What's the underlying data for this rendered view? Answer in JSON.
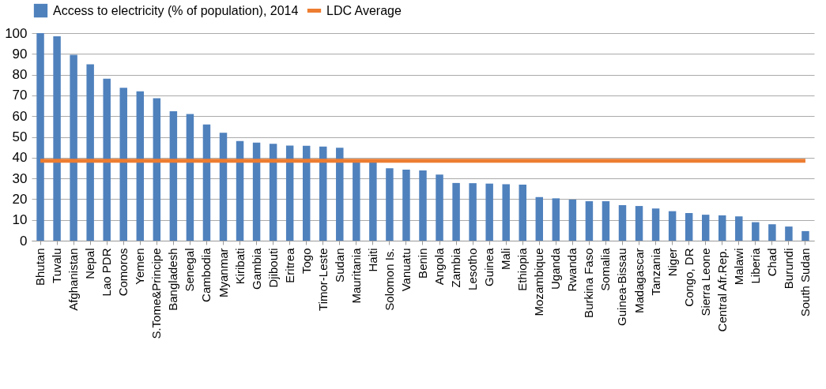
{
  "chart_data": {
    "type": "bar",
    "categories": [
      "Bhutan",
      "Tuvalu",
      "Afghanistan",
      "Nepal",
      "Lao PDR",
      "Comoros",
      "Yemen",
      "S.Tome&Principe",
      "Bangladesh",
      "Senegal",
      "Cambodia",
      "Myanmar",
      "Kiribati",
      "Gambia",
      "Djibouti",
      "Eritrea",
      "Togo",
      "Timor-Leste",
      "Sudan",
      "Mauritania",
      "Haiti",
      "Solomon Is.",
      "Vanuatu",
      "Benin",
      "Angola",
      "Zambia",
      "Lesotho",
      "Guinea",
      "Mali",
      "Ethiopia",
      "Mozambique",
      "Uganda",
      "Rwanda",
      "Burkina Faso",
      "Somalia",
      "Guinea-Bissau",
      "Madagascar",
      "Tanzania",
      "Niger",
      "Congo, DR",
      "Sierra Leone",
      "Central Afr.Rep.",
      "Malawi",
      "Liberia",
      "Chad",
      "Burundi",
      "South Sudan"
    ],
    "series": [
      {
        "name": "Access to electricity (% of population), 2014",
        "color": "#4f81bd",
        "values": [
          100,
          98.5,
          89.5,
          85,
          78,
          73.7,
          72,
          68.6,
          62.4,
          61,
          56,
          52,
          48,
          47.2,
          46.7,
          45.8,
          45.7,
          45.3,
          44.8,
          38.3,
          38,
          34.9,
          34.2,
          33.8,
          31.8,
          27.8,
          27.7,
          27.5,
          27.2,
          27,
          21,
          20.4,
          19.8,
          19,
          19,
          17.1,
          16.7,
          15.5,
          14.2,
          13.3,
          12.5,
          12.2,
          11.7,
          8.9,
          7.9,
          6.8,
          4.6
        ]
      },
      {
        "name": "LDC Average",
        "type": "line",
        "color": "#ed7d31",
        "values": [
          38.5,
          38.5,
          38.5,
          38.5,
          38.5,
          38.5,
          38.5,
          38.5,
          38.5,
          38.5,
          38.5,
          38.5,
          38.5,
          38.5,
          38.5,
          38.5,
          38.5,
          38.5,
          38.5,
          38.5,
          38.5,
          38.5,
          38.5,
          38.5,
          38.5,
          38.5,
          38.5,
          38.5,
          38.5,
          38.5,
          38.5,
          38.5,
          38.5,
          38.5,
          38.5,
          38.5,
          38.5,
          38.5,
          38.5,
          38.5,
          38.5,
          38.5,
          38.5,
          38.5,
          38.5,
          38.5,
          38.5
        ]
      }
    ],
    "ylim": [
      0,
      100
    ],
    "yticks": [
      0,
      10,
      20,
      30,
      40,
      50,
      60,
      70,
      80,
      90,
      100
    ],
    "grid": "y",
    "legend": "top"
  }
}
